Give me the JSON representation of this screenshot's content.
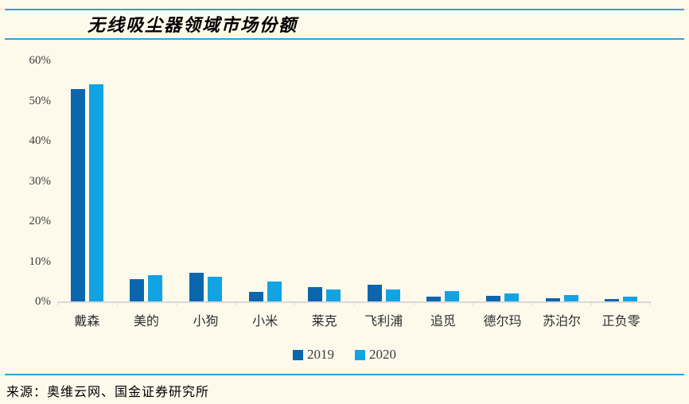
{
  "chart_data": {
    "type": "bar",
    "title": "无线吸尘器领域市场份额",
    "categories": [
      "戴森",
      "美的",
      "小狗",
      "小米",
      "莱克",
      "飞利浦",
      "追觅",
      "德尔玛",
      "苏泊尔",
      "正负零"
    ],
    "series": [
      {
        "name": "2019",
        "color": "#0B66AE",
        "values": [
          52.9,
          5.5,
          7.1,
          2.4,
          3.5,
          4.1,
          1.1,
          1.3,
          0.8,
          0.7
        ]
      },
      {
        "name": "2020",
        "color": "#12A3E3",
        "values": [
          54.1,
          6.5,
          6.1,
          5.0,
          3.0,
          3.0,
          2.5,
          1.9,
          1.5,
          1.1
        ]
      }
    ],
    "xlabel": "",
    "ylabel": "",
    "ylim": [
      0,
      60
    ],
    "ytick_step": 10,
    "ytick_labels": [
      "0%",
      "10%",
      "20%",
      "30%",
      "40%",
      "50%",
      "60%"
    ],
    "grid": false,
    "legend_position": "bottom"
  },
  "source": "来源：奥维云网、国金证券研究所",
  "colors": {
    "background": "#FDFAEC",
    "accent_line": "#29A3DC",
    "axis_line": "#D9D9D9",
    "tick_text": "#3D3D3D",
    "series_2019": "#0B66AE",
    "series_2020": "#12A3E3"
  }
}
